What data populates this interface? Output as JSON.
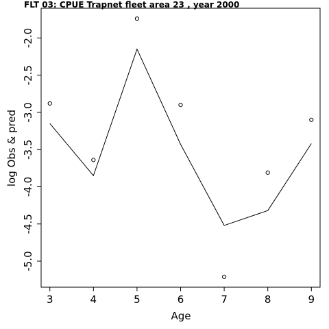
{
  "chart_data": {
    "type": "line",
    "title": "FLT 03:    CPUE       Trapnet   fleet        area        23            , year 2000",
    "xlabel": "Age",
    "ylabel": "log Obs & pred",
    "xlim": [
      2.8,
      9.2
    ],
    "ylim": [
      -5.35,
      -1.6
    ],
    "x_ticks": [
      3,
      4,
      5,
      6,
      7,
      8,
      9
    ],
    "y_ticks": [
      -5.0,
      -4.5,
      -4.0,
      -3.5,
      -3.0,
      -2.5,
      -2.0
    ],
    "y_tick_labels": [
      "-5.0",
      "-4.5",
      "-4.0",
      "-3.5",
      "-3.0",
      "-2.5",
      "-2.0"
    ],
    "series": [
      {
        "style": "points",
        "x": [
          3,
          4,
          5,
          6,
          7,
          8,
          9
        ],
        "values": [
          -2.88,
          -3.64,
          -1.74,
          -2.9,
          -5.21,
          -3.81,
          -3.1
        ]
      },
      {
        "style": "line",
        "x": [
          3,
          4,
          5,
          6,
          7,
          8,
          9
        ],
        "values": [
          -3.15,
          -3.85,
          -2.15,
          -3.43,
          -4.52,
          -4.32,
          -3.42
        ]
      }
    ],
    "grid": false,
    "legend": "none"
  }
}
